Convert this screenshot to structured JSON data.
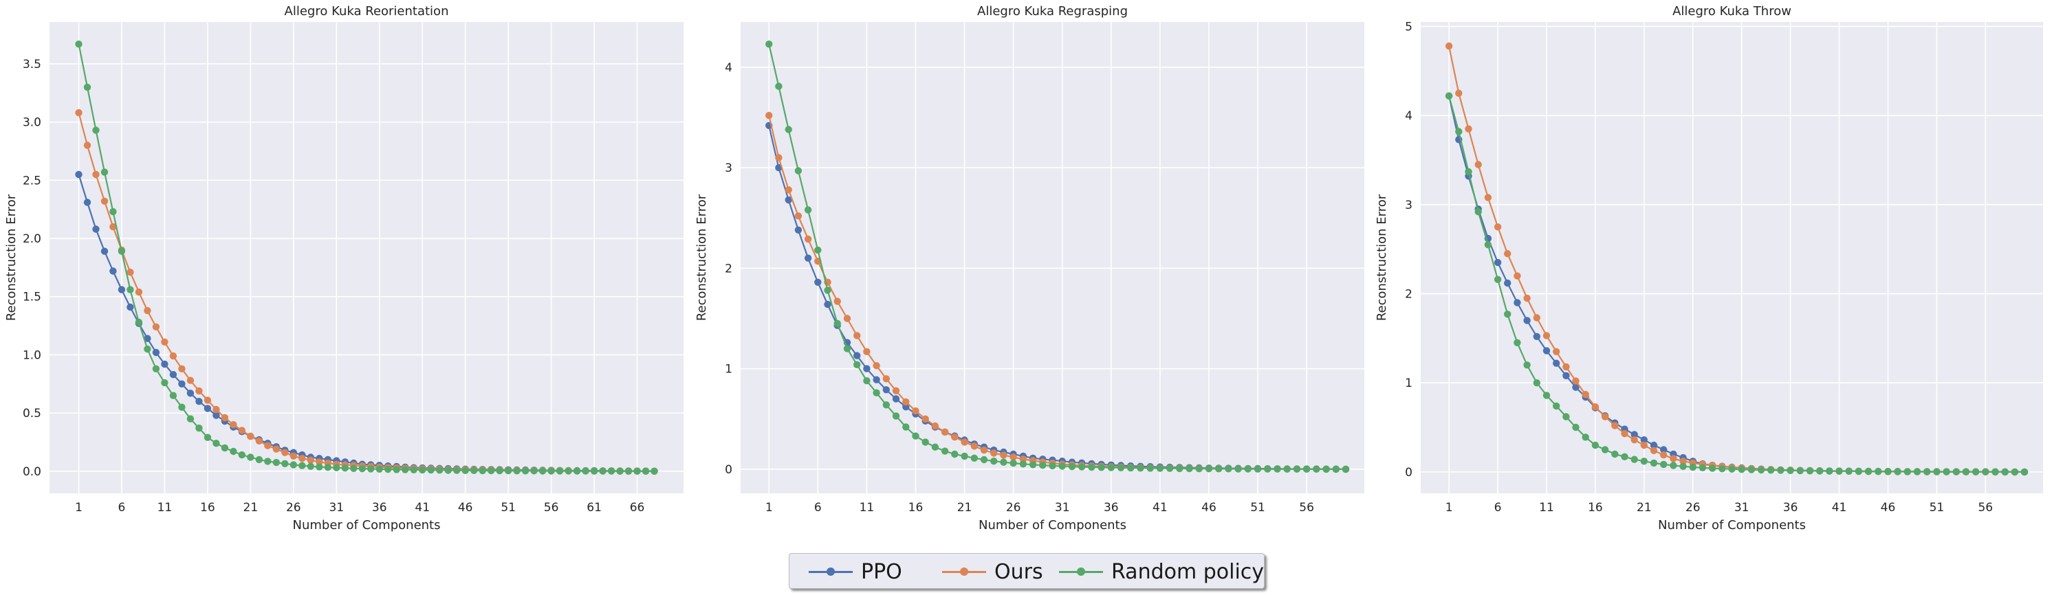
{
  "chart_data": [
    {
      "type": "line",
      "title": "Allegro Kuka Reorientation",
      "xlabel": "Number of Components",
      "ylabel": "Reconstruction Error",
      "xticks": [
        1,
        6,
        11,
        16,
        21,
        26,
        31,
        36,
        41,
        46,
        51,
        56,
        61,
        66
      ],
      "yticks": [
        "0.0",
        "0.5",
        "1.0",
        "1.5",
        "2.0",
        "2.5",
        "3.0",
        "3.5"
      ],
      "ylim": [
        -0.19,
        3.86
      ],
      "xlim": [
        -2.4,
        71.4
      ],
      "grid": true,
      "series": [
        {
          "name": "PPO",
          "color": "#4c72b0",
          "values": [
            2.55,
            2.31,
            2.08,
            1.89,
            1.72,
            1.56,
            1.41,
            1.27,
            1.14,
            1.02,
            0.92,
            0.83,
            0.75,
            0.67,
            0.6,
            0.54,
            0.48,
            0.43,
            0.38,
            0.34,
            0.3,
            0.27,
            0.24,
            0.21,
            0.18,
            0.16,
            0.14,
            0.12,
            0.11,
            0.1,
            0.09,
            0.08,
            0.07,
            0.06,
            0.055,
            0.05,
            0.045,
            0.04,
            0.035,
            0.03,
            0.028,
            0.026,
            0.024,
            0.022,
            0.02,
            0.018,
            0.016,
            0.015,
            0.014,
            0.013,
            0.012,
            0.011,
            0.01,
            0.009,
            0.008,
            0.007,
            0.006,
            0.005,
            0.005,
            0.004,
            0.004,
            0.003,
            0.003,
            0.002,
            0.002,
            0.001,
            0.001,
            0.0
          ]
        },
        {
          "name": "Ours",
          "color": "#dd8452",
          "values": [
            3.08,
            2.8,
            2.55,
            2.32,
            2.1,
            1.9,
            1.71,
            1.54,
            1.38,
            1.24,
            1.11,
            0.99,
            0.88,
            0.78,
            0.69,
            0.61,
            0.53,
            0.46,
            0.4,
            0.35,
            0.3,
            0.26,
            0.22,
            0.19,
            0.16,
            0.13,
            0.11,
            0.095,
            0.08,
            0.07,
            0.06,
            0.055,
            0.05,
            0.045,
            0.04,
            0.035,
            0.032,
            0.029,
            0.026,
            0.023,
            0.021,
            0.019,
            0.017,
            0.015,
            0.014,
            0.013,
            0.012,
            0.011,
            0.01,
            0.009,
            0.008,
            0.007,
            0.006,
            0.006,
            0.005,
            0.005,
            0.004,
            0.004,
            0.003,
            0.003,
            0.002,
            0.002,
            0.002,
            0.001,
            0.001,
            0.001,
            0.0,
            0.0
          ]
        },
        {
          "name": "Random policy",
          "color": "#55a868",
          "values": [
            3.67,
            3.3,
            2.93,
            2.57,
            2.23,
            1.89,
            1.56,
            1.28,
            1.05,
            0.88,
            0.76,
            0.65,
            0.55,
            0.45,
            0.37,
            0.29,
            0.24,
            0.2,
            0.17,
            0.14,
            0.12,
            0.1,
            0.085,
            0.075,
            0.065,
            0.055,
            0.048,
            0.042,
            0.037,
            0.033,
            0.03,
            0.027,
            0.024,
            0.022,
            0.02,
            0.018,
            0.016,
            0.014,
            0.013,
            0.012,
            0.011,
            0.01,
            0.009,
            0.008,
            0.007,
            0.006,
            0.006,
            0.005,
            0.005,
            0.004,
            0.004,
            0.003,
            0.003,
            0.003,
            0.002,
            0.002,
            0.002,
            0.002,
            0.001,
            0.001,
            0.001,
            0.001,
            0.001,
            0.0,
            0.0,
            0.0,
            0.0,
            0.0
          ]
        }
      ]
    },
    {
      "type": "line",
      "title": "Allegro Kuka Regrasping",
      "xlabel": "Number of Components",
      "ylabel": "Reconstruction Error",
      "xticks": [
        1,
        6,
        11,
        16,
        21,
        26,
        31,
        36,
        41,
        46,
        51,
        56
      ],
      "yticks": [
        "0",
        "1",
        "2",
        "3",
        "4"
      ],
      "ylim": [
        -0.24,
        4.45
      ],
      "xlim": [
        -1.9,
        61.9
      ],
      "grid": true,
      "series": [
        {
          "name": "PPO",
          "color": "#4c72b0",
          "values": [
            3.42,
            3.0,
            2.68,
            2.38,
            2.1,
            1.86,
            1.64,
            1.43,
            1.26,
            1.13,
            1.0,
            0.89,
            0.79,
            0.7,
            0.62,
            0.55,
            0.48,
            0.42,
            0.37,
            0.33,
            0.29,
            0.25,
            0.22,
            0.19,
            0.17,
            0.15,
            0.13,
            0.11,
            0.1,
            0.09,
            0.08,
            0.07,
            0.062,
            0.055,
            0.048,
            0.042,
            0.037,
            0.032,
            0.028,
            0.025,
            0.022,
            0.019,
            0.017,
            0.015,
            0.013,
            0.011,
            0.01,
            0.009,
            0.008,
            0.007,
            0.006,
            0.005,
            0.004,
            0.003,
            0.003,
            0.002,
            0.002,
            0.001,
            0.001,
            0.0
          ]
        },
        {
          "name": "Ours",
          "color": "#dd8452",
          "values": [
            3.52,
            3.1,
            2.78,
            2.52,
            2.29,
            2.07,
            1.86,
            1.67,
            1.5,
            1.33,
            1.17,
            1.03,
            0.9,
            0.78,
            0.67,
            0.58,
            0.5,
            0.43,
            0.37,
            0.32,
            0.27,
            0.23,
            0.19,
            0.16,
            0.14,
            0.12,
            0.1,
            0.085,
            0.072,
            0.06,
            0.05,
            0.043,
            0.037,
            0.032,
            0.028,
            0.024,
            0.021,
            0.018,
            0.016,
            0.014,
            0.012,
            0.011,
            0.01,
            0.009,
            0.008,
            0.007,
            0.006,
            0.005,
            0.004,
            0.004,
            0.003,
            0.003,
            0.002,
            0.002,
            0.002,
            0.001,
            0.001,
            0.001,
            0.0,
            0.0
          ]
        },
        {
          "name": "Random policy",
          "color": "#55a868",
          "values": [
            4.23,
            3.81,
            3.38,
            2.97,
            2.58,
            2.18,
            1.78,
            1.45,
            1.2,
            1.04,
            0.88,
            0.76,
            0.64,
            0.53,
            0.42,
            0.33,
            0.27,
            0.22,
            0.18,
            0.15,
            0.13,
            0.11,
            0.095,
            0.08,
            0.07,
            0.06,
            0.052,
            0.045,
            0.039,
            0.034,
            0.03,
            0.026,
            0.023,
            0.02,
            0.018,
            0.016,
            0.014,
            0.012,
            0.011,
            0.01,
            0.009,
            0.008,
            0.007,
            0.006,
            0.005,
            0.005,
            0.004,
            0.004,
            0.003,
            0.003,
            0.002,
            0.002,
            0.002,
            0.001,
            0.001,
            0.001,
            0.001,
            0.0,
            0.0,
            0.0
          ]
        }
      ]
    },
    {
      "type": "line",
      "title": "Allegro Kuka Throw",
      "xlabel": "Number of Components",
      "ylabel": "Reconstruction Error",
      "xticks": [
        1,
        6,
        11,
        16,
        21,
        26,
        31,
        36,
        41,
        46,
        51,
        56
      ],
      "yticks": [
        "0",
        "1",
        "2",
        "3",
        "4",
        "5"
      ],
      "ylim": [
        -0.24,
        5.05
      ],
      "xlim": [
        -1.9,
        61.9
      ],
      "grid": true,
      "series": [
        {
          "name": "PPO",
          "color": "#4c72b0",
          "values": [
            4.22,
            3.73,
            3.32,
            2.95,
            2.62,
            2.35,
            2.12,
            1.9,
            1.7,
            1.52,
            1.36,
            1.22,
            1.08,
            0.95,
            0.84,
            0.72,
            0.63,
            0.55,
            0.48,
            0.42,
            0.36,
            0.3,
            0.25,
            0.2,
            0.16,
            0.12,
            0.09,
            0.075,
            0.063,
            0.053,
            0.045,
            0.038,
            0.032,
            0.027,
            0.023,
            0.02,
            0.017,
            0.015,
            0.013,
            0.011,
            0.01,
            0.009,
            0.008,
            0.007,
            0.006,
            0.005,
            0.005,
            0.004,
            0.004,
            0.003,
            0.003,
            0.002,
            0.002,
            0.002,
            0.001,
            0.001,
            0.001,
            0.001,
            0.0,
            0.0
          ]
        },
        {
          "name": "Ours",
          "color": "#dd8452",
          "values": [
            4.78,
            4.25,
            3.85,
            3.45,
            3.08,
            2.75,
            2.45,
            2.2,
            1.95,
            1.73,
            1.53,
            1.35,
            1.18,
            1.02,
            0.87,
            0.73,
            0.62,
            0.52,
            0.43,
            0.36,
            0.3,
            0.24,
            0.19,
            0.15,
            0.12,
            0.1,
            0.085,
            0.072,
            0.06,
            0.05,
            0.042,
            0.036,
            0.031,
            0.026,
            0.022,
            0.019,
            0.016,
            0.014,
            0.012,
            0.01,
            0.009,
            0.008,
            0.007,
            0.006,
            0.005,
            0.004,
            0.004,
            0.003,
            0.003,
            0.002,
            0.002,
            0.002,
            0.001,
            0.001,
            0.001,
            0.001,
            0.0,
            0.0,
            0.0,
            0.0
          ]
        },
        {
          "name": "Random policy",
          "color": "#55a868",
          "values": [
            4.22,
            3.82,
            3.37,
            2.92,
            2.55,
            2.16,
            1.77,
            1.45,
            1.2,
            1.0,
            0.86,
            0.74,
            0.62,
            0.5,
            0.39,
            0.3,
            0.25,
            0.2,
            0.17,
            0.14,
            0.12,
            0.1,
            0.085,
            0.072,
            0.062,
            0.054,
            0.047,
            0.041,
            0.036,
            0.032,
            0.028,
            0.025,
            0.022,
            0.02,
            0.018,
            0.016,
            0.014,
            0.012,
            0.011,
            0.01,
            0.009,
            0.008,
            0.007,
            0.006,
            0.005,
            0.005,
            0.004,
            0.004,
            0.003,
            0.003,
            0.002,
            0.002,
            0.002,
            0.001,
            0.001,
            0.001,
            0.001,
            0.0,
            0.0,
            0.0
          ]
        }
      ]
    }
  ],
  "legend": {
    "placement": "bottom-center",
    "items": [
      {
        "label": "PPO",
        "color": "#4c72b0"
      },
      {
        "label": "Ours",
        "color": "#dd8452"
      },
      {
        "label": "Random policy",
        "color": "#55a868"
      }
    ]
  }
}
